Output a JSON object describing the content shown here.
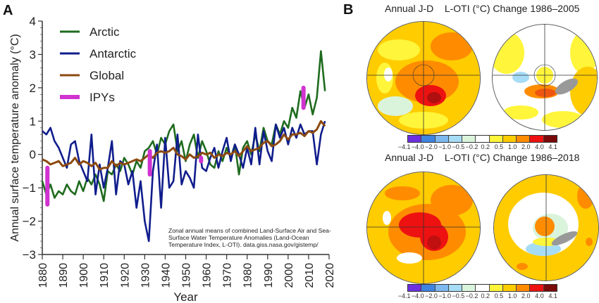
{
  "panelA": {
    "label": "A",
    "chart_data": {
      "type": "line",
      "title": "",
      "xlabel": "Year",
      "ylabel": "Annual surface temperature anomaly (°C)",
      "xlim": [
        1880,
        2020
      ],
      "ylim": [
        -3,
        4
      ],
      "xticks": [
        "1880",
        "1890",
        "1900",
        "1910",
        "1920",
        "1930",
        "1940",
        "1950",
        "1960",
        "1970",
        "1980",
        "1990",
        "2000",
        "2010",
        "2020"
      ],
      "yticks": [
        "4",
        "3",
        "2",
        "1",
        "0",
        "−1",
        "−2",
        "−3"
      ],
      "grid": false,
      "legend_position": "top-left",
      "annotation": "Zonal annual means of combined Land-Surface Air and Sea-Surface Water Temperature Anomalies (Land-Ocean Temperature Index, L-OTI). data.giss.nasa.gov/gistemp/",
      "x": [
        1880,
        1882,
        1884,
        1886,
        1888,
        1890,
        1892,
        1894,
        1896,
        1898,
        1900,
        1902,
        1904,
        1906,
        1908,
        1910,
        1912,
        1914,
        1916,
        1918,
        1920,
        1922,
        1924,
        1926,
        1928,
        1930,
        1932,
        1934,
        1936,
        1938,
        1940,
        1942,
        1944,
        1946,
        1948,
        1950,
        1952,
        1954,
        1956,
        1958,
        1960,
        1962,
        1964,
        1966,
        1968,
        1970,
        1972,
        1974,
        1976,
        1978,
        1980,
        1982,
        1984,
        1986,
        1988,
        1990,
        1992,
        1994,
        1996,
        1998,
        2000,
        2002,
        2004,
        2006,
        2008,
        2010,
        2012,
        2014,
        2016,
        2018
      ],
      "series": [
        {
          "name": "Arctic",
          "color": "#1e6b1e",
          "values": [
            -0.8,
            -1.2,
            -0.9,
            -1.3,
            -1.1,
            -1.2,
            -0.9,
            -1.1,
            -1.2,
            -0.8,
            -1.1,
            -0.7,
            -0.9,
            -0.6,
            -0.9,
            -1.4,
            -0.5,
            -0.6,
            -0.3,
            -0.5,
            -0.1,
            -0.3,
            -0.6,
            -0.2,
            -0.4,
            0.1,
            0.2,
            0.4,
            0.0,
            0.5,
            0.3,
            0.7,
            0.9,
            0.1,
            0.4,
            -0.2,
            0.3,
            0.6,
            -0.1,
            0.4,
            0.1,
            -0.3,
            -0.4,
            0.1,
            -0.2,
            0.2,
            -0.1,
            0.3,
            -0.6,
            0.2,
            0.4,
            0.0,
            0.6,
            0.1,
            0.8,
            0.4,
            0.3,
            0.9,
            0.6,
            1.0,
            0.8,
            1.4,
            1.1,
            1.9,
            1.4,
            1.8,
            1.2,
            1.7,
            3.1,
            1.9
          ]
        },
        {
          "name": "Antarctic",
          "color": "#101d8c",
          "values": [
            0.7,
            0.6,
            0.8,
            0.4,
            0.2,
            -0.1,
            -0.4,
            0.3,
            0.4,
            -0.2,
            -0.5,
            -0.8,
            0.6,
            -1.2,
            -0.3,
            -1.0,
            -0.4,
            0.4,
            -1.2,
            -0.2,
            -0.3,
            -0.9,
            -0.5,
            -1.6,
            -0.8,
            -2.0,
            -2.6,
            -0.5,
            0.3,
            -1.6,
            0.5,
            -1.0,
            -0.8,
            0.6,
            -0.9,
            -0.5,
            -0.7,
            -1.0,
            0.6,
            -0.4,
            -0.5,
            -0.1,
            0.2,
            -0.4,
            0.1,
            0.5,
            -0.2,
            0.3,
            0.0,
            -0.4,
            0.2,
            -0.3,
            0.8,
            -0.3,
            0.7,
            0.1,
            -0.2,
            0.9,
            0.5,
            0.8,
            0.3,
            0.8,
            0.5,
            0.9,
            0.6,
            0.7,
            0.7,
            -0.3,
            0.6,
            1.0
          ]
        },
        {
          "name": "Global",
          "color": "#8b4a10",
          "values": [
            -0.15,
            -0.2,
            -0.3,
            -0.25,
            -0.2,
            -0.35,
            -0.3,
            -0.25,
            -0.1,
            -0.3,
            -0.2,
            -0.25,
            -0.35,
            -0.25,
            -0.45,
            -0.4,
            -0.4,
            -0.2,
            -0.35,
            -0.25,
            -0.3,
            -0.25,
            -0.2,
            -0.15,
            -0.2,
            -0.1,
            0.0,
            -0.1,
            0.05,
            0.1,
            0.05,
            0.1,
            0.2,
            0.0,
            -0.05,
            -0.15,
            0.0,
            -0.1,
            -0.05,
            0.05,
            0.0,
            0.05,
            -0.1,
            0.0,
            -0.05,
            0.05,
            0.0,
            0.1,
            -0.05,
            0.1,
            0.25,
            0.1,
            0.15,
            0.2,
            0.35,
            0.4,
            0.25,
            0.3,
            0.4,
            0.6,
            0.45,
            0.6,
            0.6,
            0.65,
            0.55,
            0.7,
            0.65,
            0.75,
            1.0,
            0.85
          ]
        },
        {
          "name": "IPYs",
          "color": "#d033d0",
          "segments": [
            {
              "year": 1882.5,
              "from": -0.4,
              "to": -1.5
            },
            {
              "year": 1932.5,
              "from": 0.1,
              "to": -0.6
            },
            {
              "year": 1957.5,
              "from": -0.1,
              "to": -0.2
            },
            {
              "year": 2007.5,
              "from": 2.0,
              "to": 1.4
            }
          ]
        }
      ]
    }
  },
  "panelB": {
    "label": "B",
    "maps": [
      {
        "title": "Annual J-D    L-OTI (°C) Change 1986–2005",
        "hemispheres": [
          "Northern",
          "Southern"
        ]
      },
      {
        "title": "Annual J-D    L-OTI (°C) Change 1986–2018",
        "hemispheres": [
          "Northern",
          "Southern"
        ]
      }
    ],
    "colorbar": {
      "labels": [
        "−4.1",
        "−4.0",
        "−2.0",
        "−1.0",
        "−0.5",
        "−0.2",
        "0.2",
        "0.5",
        "1.0",
        "2.0",
        "4.0",
        "4.1"
      ],
      "colors": [
        "#6d2fe0",
        "#3e84e0",
        "#7db8ef",
        "#a6dcf6",
        "#daf4dc",
        "#ffffff",
        "#fff53a",
        "#ffcc00",
        "#ff8c00",
        "#ee1111",
        "#7a0a0a"
      ]
    }
  }
}
